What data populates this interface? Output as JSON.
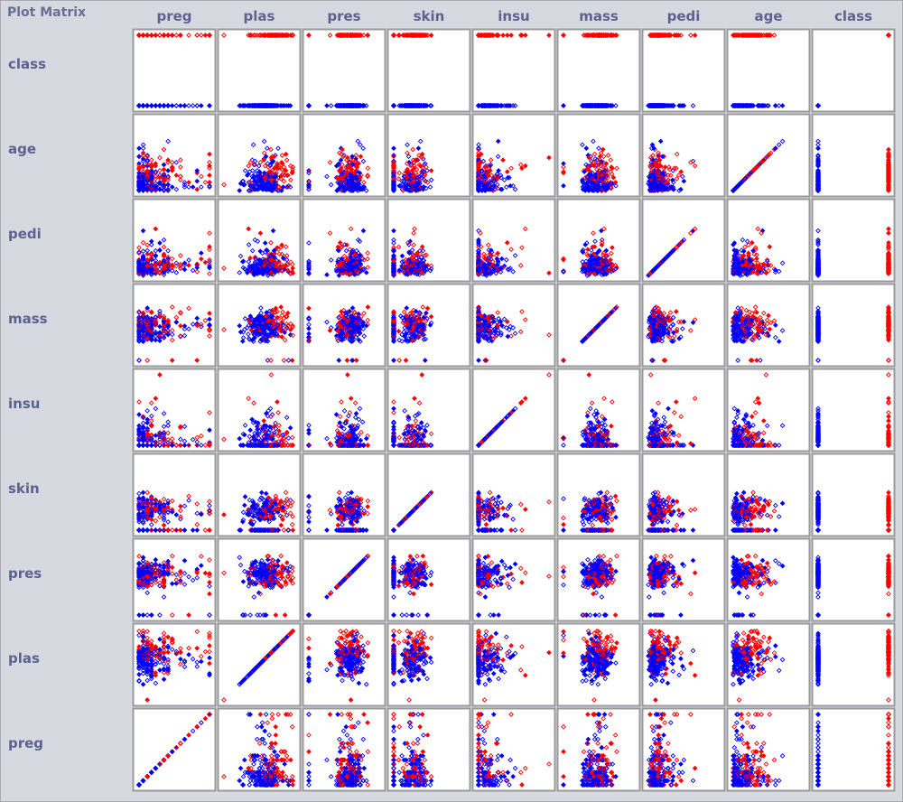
{
  "title": "Plot Matrix",
  "chart_data": {
    "type": "scatter",
    "subtype": "scatter-plot-matrix",
    "column_variables": [
      "preg",
      "plas",
      "pres",
      "skin",
      "insu",
      "mass",
      "pedi",
      "age",
      "class"
    ],
    "row_variables": [
      "class",
      "age",
      "pedi",
      "mass",
      "insu",
      "skin",
      "pres",
      "plas",
      "preg"
    ],
    "axis_ranges": {
      "preg": [
        0,
        17
      ],
      "plas": [
        0,
        199
      ],
      "pres": [
        0,
        122
      ],
      "skin": [
        0,
        99
      ],
      "insu": [
        0,
        846
      ],
      "mass": [
        0,
        67.1
      ],
      "pedi": [
        0.078,
        2.42
      ],
      "age": [
        21,
        81
      ],
      "class": [
        0,
        1
      ]
    },
    "classes": [
      {
        "value": 0,
        "color": "#0000ff"
      },
      {
        "value": 1,
        "color": "#ff0000"
      }
    ],
    "marker": "diamond",
    "grid": false
  }
}
